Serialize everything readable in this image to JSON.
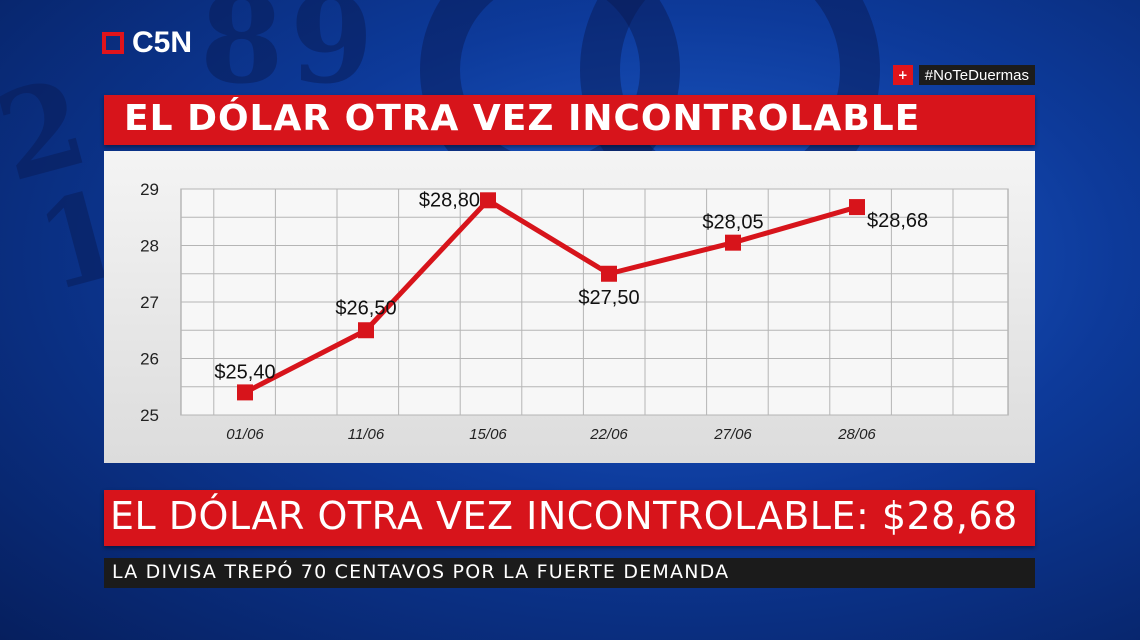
{
  "brand": {
    "logo_text": "C5N"
  },
  "hashtag": {
    "plus": "+",
    "text": "#NoTeDuermas"
  },
  "top_banner": {
    "title": "EL DÓLAR OTRA VEZ INCONTROLABLE"
  },
  "chart_data": {
    "type": "line",
    "categories": [
      "01/06",
      "11/06",
      "15/06",
      "22/06",
      "27/06",
      "28/06"
    ],
    "values": [
      25.4,
      26.5,
      28.8,
      27.5,
      28.05,
      28.68
    ],
    "data_labels": [
      "$25,40",
      "$26,50",
      "$28,80",
      "$27,50",
      "$28,05",
      "$28,68"
    ],
    "y_ticks": [
      "25",
      "26",
      "27",
      "28",
      "29"
    ],
    "ylim": [
      25,
      29
    ],
    "grid": true,
    "line_color": "#d7141b",
    "title": "",
    "xlabel": "",
    "ylabel": ""
  },
  "bottom_banner": {
    "headline": "EL DÓLAR OTRA VEZ INCONTROLABLE: $28,68"
  },
  "sub_banner": {
    "text": "LA DIVISA TREPÓ 70 CENTAVOS POR LA FUERTE DEMANDA"
  },
  "colors": {
    "accent_red": "#d7141b",
    "dark_bar": "#1b1b1b",
    "bg_blue": "#0d3a9a"
  }
}
